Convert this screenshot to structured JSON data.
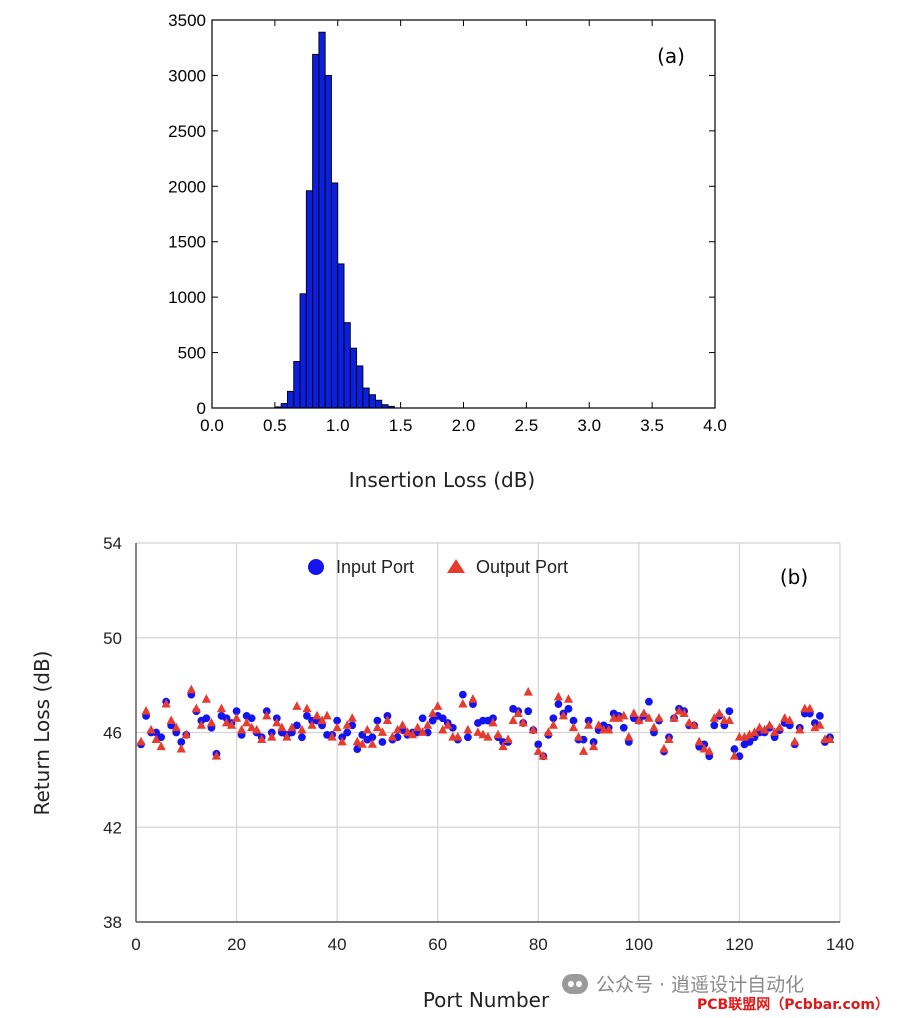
{
  "chart_data": [
    {
      "type": "bar",
      "panel_label": "(a)",
      "xlabel": "Insertion Loss (dB)",
      "ylabel": "",
      "xlim": [
        0.0,
        4.0
      ],
      "ylim": [
        0,
        3500
      ],
      "xticks": [
        "0.0",
        "0.5",
        "1.0",
        "1.5",
        "2.0",
        "2.5",
        "3.0",
        "3.5",
        "4.0"
      ],
      "yticks": [
        "0",
        "500",
        "1000",
        "1500",
        "2000",
        "2500",
        "3000",
        "3500"
      ],
      "bin_width": 0.05,
      "bin_starts": [
        0.5,
        0.55,
        0.6,
        0.65,
        0.7,
        0.75,
        0.8,
        0.85,
        0.9,
        0.95,
        1.0,
        1.05,
        1.1,
        1.15,
        1.2,
        1.25,
        1.3,
        1.35,
        1.4
      ],
      "values": [
        10,
        40,
        150,
        420,
        1030,
        1960,
        3190,
        3390,
        3000,
        2030,
        1300,
        770,
        540,
        380,
        180,
        120,
        70,
        30,
        15
      ],
      "bar_color": "#0a1fe0",
      "grid": false
    },
    {
      "type": "scatter",
      "panel_label": "(b)",
      "xlabel": "Port Number",
      "ylabel": "Return Loss (dB)",
      "xlim": [
        0,
        140
      ],
      "ylim": [
        38,
        54
      ],
      "xticks": [
        "0",
        "20",
        "40",
        "60",
        "80",
        "100",
        "120",
        "140"
      ],
      "yticks": [
        "38",
        "42",
        "46",
        "50",
        "54"
      ],
      "grid": true,
      "legend_position": "top-center",
      "series": [
        {
          "name": "Input Port",
          "marker": "circle",
          "color": "#1414f0",
          "values": [
            45.5,
            46.7,
            46.0,
            46.0,
            45.8,
            47.3,
            46.3,
            46.0,
            45.6,
            45.9,
            47.6,
            46.9,
            46.5,
            46.6,
            46.2,
            45.1,
            46.7,
            46.6,
            46.4,
            46.9,
            45.9,
            46.7,
            46.6,
            46.0,
            45.8,
            46.9,
            46.0,
            46.6,
            46.0,
            45.9,
            46.0,
            46.3,
            45.8,
            46.7,
            46.5,
            46.5,
            46.3,
            45.9,
            45.9,
            46.5,
            45.8,
            46.0,
            46.3,
            45.3,
            45.9,
            45.7,
            45.8,
            46.5,
            45.6,
            46.7,
            45.7,
            45.8,
            46.1,
            45.9,
            46.0,
            46.0,
            46.6,
            46.0,
            46.5,
            46.7,
            46.6,
            46.4,
            46.2,
            45.7,
            47.6,
            45.8,
            47.2,
            46.4,
            46.5,
            46.5,
            46.6,
            45.8,
            45.6,
            45.6,
            47.0,
            46.9,
            46.4,
            46.9,
            46.1,
            45.5,
            45.0,
            45.9,
            46.6,
            47.2,
            46.8,
            47.0,
            46.5,
            45.7,
            45.7,
            46.5,
            45.6,
            46.1,
            46.3,
            46.2,
            46.8,
            46.7,
            46.2,
            45.6,
            46.6,
            46.5,
            46.7,
            47.3,
            46.0,
            46.5,
            45.2,
            45.8,
            46.6,
            47.0,
            46.9,
            46.3,
            46.3,
            45.4,
            45.5,
            45.0,
            46.3,
            46.7,
            46.3,
            46.9,
            45.3,
            45.0,
            45.5,
            45.6,
            45.8,
            46.0,
            46.0,
            46.2,
            45.8,
            46.1,
            46.4,
            46.3,
            45.5,
            46.2,
            46.8,
            46.8,
            46.4,
            46.7,
            45.6,
            45.8
          ]
        },
        {
          "name": "Output Port",
          "marker": "triangle",
          "color": "#e63c2e",
          "values": [
            45.6,
            46.9,
            46.1,
            45.7,
            45.4,
            47.2,
            46.5,
            46.2,
            45.3,
            45.9,
            47.8,
            47.0,
            46.3,
            47.4,
            46.4,
            45.0,
            47.0,
            46.4,
            46.3,
            46.6,
            46.1,
            46.4,
            46.2,
            46.1,
            45.7,
            46.7,
            45.8,
            46.4,
            46.2,
            45.8,
            46.2,
            47.1,
            46.1,
            47.0,
            46.3,
            46.7,
            46.5,
            46.7,
            45.8,
            46.2,
            45.6,
            46.3,
            46.6,
            45.6,
            45.5,
            46.1,
            45.5,
            46.2,
            46.0,
            46.5,
            45.8,
            46.1,
            46.3,
            46.0,
            45.9,
            46.2,
            46.0,
            46.3,
            46.8,
            47.1,
            46.1,
            46.3,
            45.8,
            45.8,
            47.2,
            46.1,
            47.4,
            46.0,
            45.9,
            45.8,
            46.4,
            45.9,
            45.4,
            45.7,
            46.5,
            46.8,
            46.4,
            47.7,
            46.1,
            45.2,
            45.0,
            46.0,
            46.3,
            47.5,
            46.7,
            47.4,
            46.2,
            45.8,
            45.2,
            46.3,
            45.4,
            46.3,
            46.1,
            46.1,
            46.6,
            46.6,
            46.7,
            45.8,
            46.8,
            46.5,
            46.8,
            46.6,
            46.2,
            46.6,
            45.3,
            45.7,
            46.6,
            46.9,
            46.8,
            46.4,
            46.3,
            45.6,
            45.3,
            45.2,
            46.6,
            46.8,
            46.5,
            46.5,
            45.0,
            45.8,
            45.8,
            45.9,
            46.0,
            46.2,
            46.1,
            46.3,
            46.0,
            46.2,
            46.6,
            46.5,
            45.6,
            46.1,
            47.0,
            47.0,
            46.2,
            46.3,
            45.7,
            45.7
          ]
        }
      ]
    }
  ],
  "watermark": {
    "line1": "公众号 · 逍遥设计自动化",
    "line2": "PCB联盟网（Pcbbar.com）"
  }
}
